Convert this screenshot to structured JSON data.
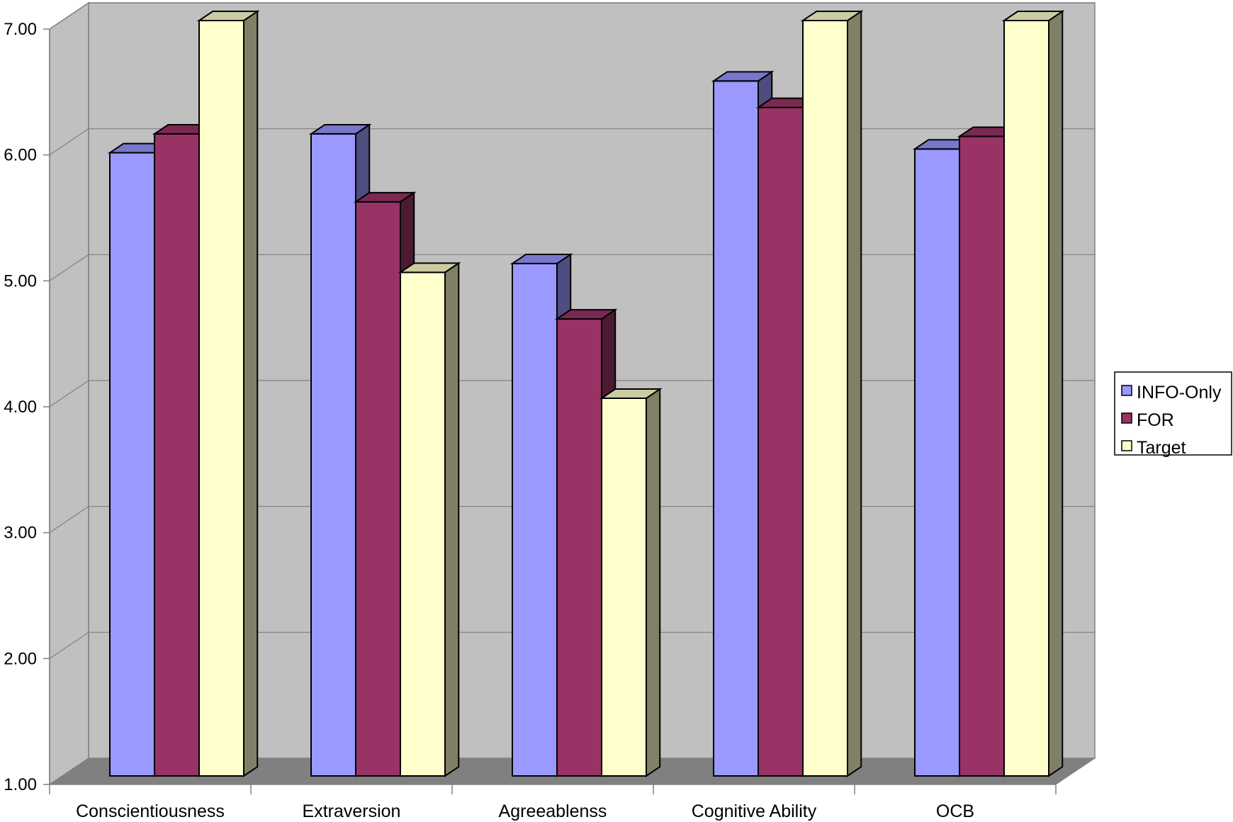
{
  "chart_data": {
    "type": "bar",
    "categories": [
      "Conscientiousness",
      "Extraversion",
      "Agreeablenss",
      "Cognitive Ability",
      "OCB"
    ],
    "series": [
      {
        "name": "INFO-Only",
        "values": [
          5.95,
          6.1,
          5.07,
          6.52,
          5.98
        ],
        "color": "#9999ff",
        "side": "#4d4d80",
        "top": "#7777cc"
      },
      {
        "name": "FOR",
        "values": [
          6.1,
          5.56,
          4.63,
          6.31,
          6.08
        ],
        "color": "#993366",
        "side": "#4d1a33",
        "top": "#7a2952"
      },
      {
        "name": "Target",
        "values": [
          7.0,
          5.0,
          4.0,
          7.0,
          7.0
        ],
        "color": "#ffffcc",
        "side": "#808066",
        "top": "#cccca3"
      }
    ],
    "y_ticks": [
      "1.00",
      "2.00",
      "3.00",
      "4.00",
      "5.00",
      "6.00",
      "7.00"
    ],
    "ylim": [
      1,
      7
    ],
    "grid": true,
    "legend_position": "right",
    "wall_color": "#c0c0c0",
    "floor_color": "#808080",
    "title": "",
    "xlabel": "",
    "ylabel": ""
  }
}
